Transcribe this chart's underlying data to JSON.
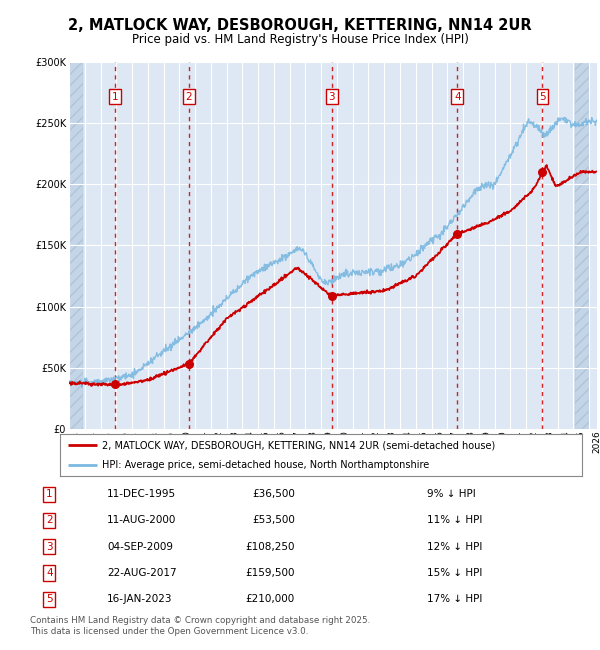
{
  "title": "2, MATLOCK WAY, DESBOROUGH, KETTERING, NN14 2UR",
  "subtitle": "Price paid vs. HM Land Registry's House Price Index (HPI)",
  "title_fontsize": 10.5,
  "subtitle_fontsize": 8.5,
  "sale_dates_num": [
    1995.94,
    2000.61,
    2009.67,
    2017.64,
    2023.04
  ],
  "sale_prices": [
    36500,
    53500,
    108250,
    159500,
    210000
  ],
  "sale_labels": [
    "1",
    "2",
    "3",
    "4",
    "5"
  ],
  "legend_red": "2, MATLOCK WAY, DESBOROUGH, KETTERING, NN14 2UR (semi-detached house)",
  "legend_blue": "HPI: Average price, semi-detached house, North Northamptonshire",
  "table_rows": [
    [
      "1",
      "11-DEC-1995",
      "£36,500",
      "9% ↓ HPI"
    ],
    [
      "2",
      "11-AUG-2000",
      "£53,500",
      "11% ↓ HPI"
    ],
    [
      "3",
      "04-SEP-2009",
      "£108,250",
      "12% ↓ HPI"
    ],
    [
      "4",
      "22-AUG-2017",
      "£159,500",
      "15% ↓ HPI"
    ],
    [
      "5",
      "16-JAN-2023",
      "£210,000",
      "17% ↓ HPI"
    ]
  ],
  "footer": "Contains HM Land Registry data © Crown copyright and database right 2025.\nThis data is licensed under the Open Government Licence v3.0.",
  "ylim": [
    0,
    300000
  ],
  "xlim_start": 1993.0,
  "xlim_end": 2026.0,
  "bg_chart": "#dde8f4",
  "bg_hatch_color": "#c5d5e8",
  "bg_white": "#ffffff",
  "red_color": "#cc0000",
  "blue_color": "#7ab8e0",
  "grid_color": "#ffffff",
  "dashed_color": "#cc0000"
}
